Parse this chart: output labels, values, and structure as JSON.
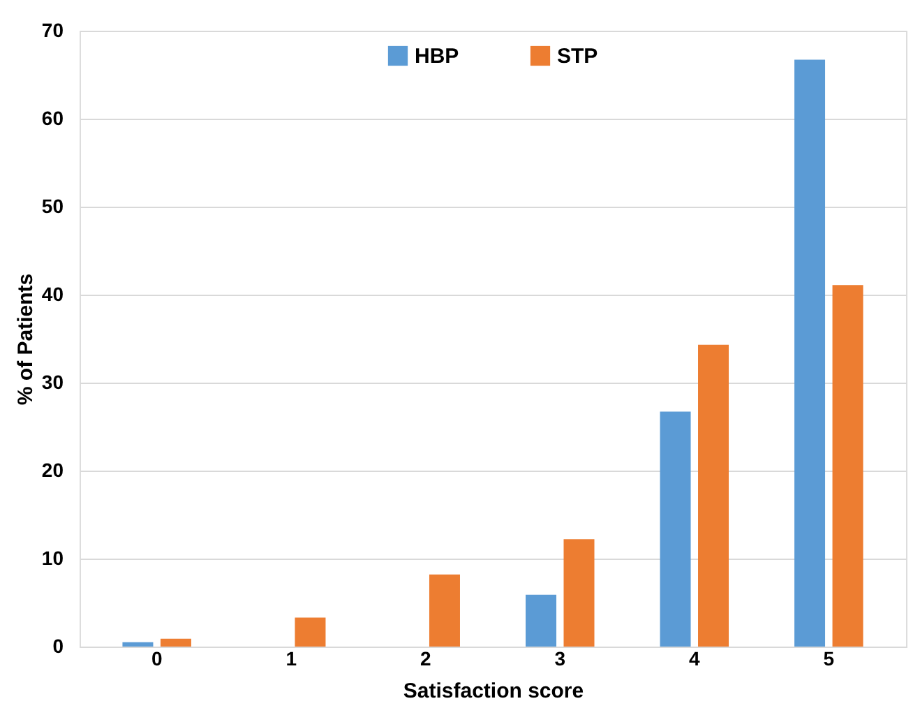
{
  "chart_data": {
    "type": "bar",
    "xlabel": "Satisfaction score",
    "ylabel": "% of Patients",
    "categories": [
      "0",
      "1",
      "2",
      "3",
      "4",
      "5"
    ],
    "series": [
      {
        "name": "HBP",
        "color": "#5b9bd5",
        "values": [
          0.5,
          0,
          0,
          5.9,
          26.7,
          66.7
        ]
      },
      {
        "name": "STP",
        "color": "#ed7d31",
        "values": [
          0.9,
          3.3,
          8.2,
          12.2,
          34.3,
          41.1
        ]
      }
    ],
    "ylim": [
      0,
      70
    ],
    "yticks": [
      0,
      10,
      20,
      30,
      40,
      50,
      60,
      70
    ],
    "grid": "y",
    "legend": "top"
  }
}
